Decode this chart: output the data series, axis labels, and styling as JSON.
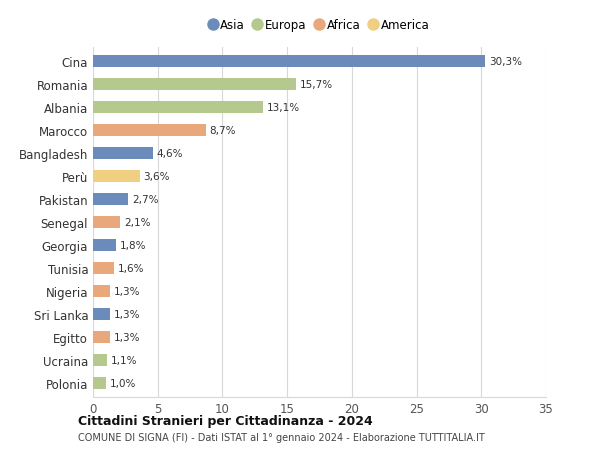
{
  "categories": [
    "Cina",
    "Romania",
    "Albania",
    "Marocco",
    "Bangladesh",
    "Perù",
    "Pakistan",
    "Senegal",
    "Georgia",
    "Tunisia",
    "Nigeria",
    "Sri Lanka",
    "Egitto",
    "Ucraina",
    "Polonia"
  ],
  "values": [
    30.3,
    15.7,
    13.1,
    8.7,
    4.6,
    3.6,
    2.7,
    2.1,
    1.8,
    1.6,
    1.3,
    1.3,
    1.3,
    1.1,
    1.0
  ],
  "labels": [
    "30,3%",
    "15,7%",
    "13,1%",
    "8,7%",
    "4,6%",
    "3,6%",
    "2,7%",
    "2,1%",
    "1,8%",
    "1,6%",
    "1,3%",
    "1,3%",
    "1,3%",
    "1,1%",
    "1,0%"
  ],
  "colors": [
    "#6b8cba",
    "#b5c98e",
    "#b5c98e",
    "#e8a87c",
    "#6b8cba",
    "#f0d080",
    "#6b8cba",
    "#e8a87c",
    "#6b8cba",
    "#e8a87c",
    "#e8a87c",
    "#6b8cba",
    "#e8a87c",
    "#b5c98e",
    "#b5c98e"
  ],
  "legend": [
    {
      "label": "Asia",
      "color": "#6b8cba"
    },
    {
      "label": "Europa",
      "color": "#b5c98e"
    },
    {
      "label": "Africa",
      "color": "#e8a87c"
    },
    {
      "label": "America",
      "color": "#f0d080"
    }
  ],
  "xlim": [
    0,
    35
  ],
  "xticks": [
    0,
    5,
    10,
    15,
    20,
    25,
    30,
    35
  ],
  "title": "Cittadini Stranieri per Cittadinanza - 2024",
  "subtitle": "COMUNE DI SIGNA (FI) - Dati ISTAT al 1° gennaio 2024 - Elaborazione TUTTITALIA.IT",
  "bg_color": "#ffffff",
  "grid_color": "#d8d8d8",
  "bar_height": 0.55
}
